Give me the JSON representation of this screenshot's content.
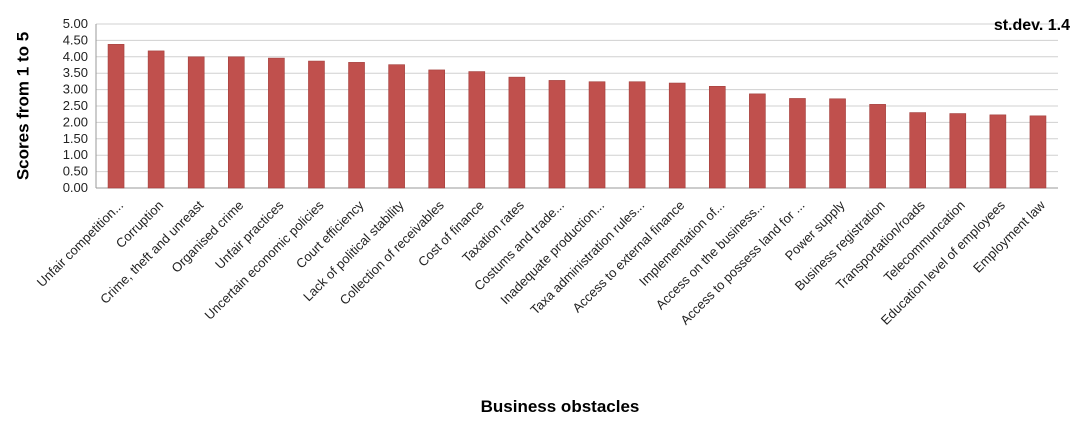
{
  "chart_data": {
    "type": "bar",
    "title": "",
    "xlabel": "Business obstacles",
    "ylabel": "Scores from 1 to 5",
    "note": "st.dev. 1.4",
    "ylim": [
      0,
      5
    ],
    "y_ticks": [
      "0.00",
      "0.50",
      "1.00",
      "1.50",
      "2.00",
      "2.50",
      "3.00",
      "3.50",
      "4.00",
      "4.50",
      "5.00"
    ],
    "grid": true,
    "bar_color": "#c0504d",
    "categories": [
      "Unfair competition...",
      "Corruption",
      "Crime, theft and unreast",
      "Organised crime",
      "Unfair practices",
      "Uncertain economic policies",
      "Court efficiency",
      "Lack of political stability",
      "Collection of receivables",
      "Cost of finance",
      "Taxation rates",
      "Costums and trade...",
      "Inadequate production...",
      "Taxa administration rules...",
      "Access to external finance",
      "Implementation of...",
      "Access on the business...",
      "Access to possess land for ...",
      "Power supply",
      "Business registration",
      "Transportation/roads",
      "Telecommuncation",
      "Education level of employees",
      "Employment law"
    ],
    "values": [
      4.38,
      4.18,
      4.0,
      4.0,
      3.96,
      3.87,
      3.83,
      3.76,
      3.6,
      3.55,
      3.38,
      3.28,
      3.24,
      3.24,
      3.2,
      3.1,
      2.87,
      2.73,
      2.72,
      2.55,
      2.3,
      2.27,
      2.23,
      2.2
    ]
  }
}
